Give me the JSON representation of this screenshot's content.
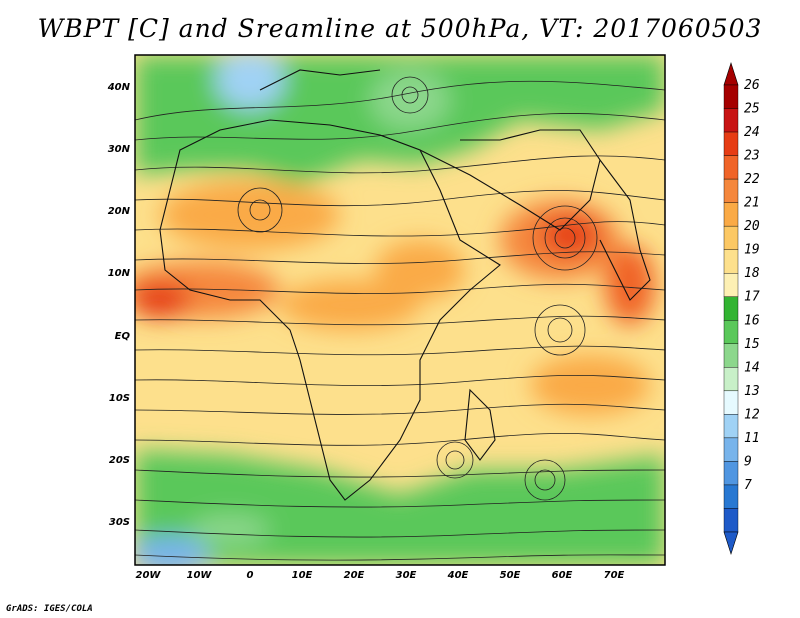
{
  "title": "WBPT [C] and Sreamline at 500hPa, VT: 2017060503",
  "footer": "GrADS: IGES/COLA",
  "map": {
    "variable": "Wet-bulb potential temperature (WBPT) with streamlines",
    "level": "500hPa",
    "valid_time": "2017060503",
    "lon_range": [
      -22,
      80
    ],
    "lat_range": [
      -37,
      45
    ],
    "lon_ticks": [
      "20W",
      "10W",
      "0",
      "10E",
      "20E",
      "30E",
      "40E",
      "50E",
      "60E",
      "70E"
    ],
    "lat_ticks": [
      "40N",
      "30N",
      "20N",
      "10N",
      "EQ",
      "10S",
      "20S",
      "30S"
    ]
  },
  "colorbar": {
    "labels": [
      "26",
      "25",
      "24",
      "23",
      "22",
      "21",
      "20",
      "19",
      "18",
      "17",
      "16",
      "15",
      "14",
      "13",
      "12",
      "11",
      "9",
      "7"
    ],
    "colors": [
      "#a50000",
      "#c81414",
      "#e63c14",
      "#f06428",
      "#f5873c",
      "#faaa46",
      "#fcc864",
      "#fde08c",
      "#fdf0b4",
      "#32b432",
      "#5ac85a",
      "#8cd78c",
      "#c8f0c8",
      "#e6faff",
      "#a0d2f5",
      "#78b4eb",
      "#5096e1",
      "#2878d2",
      "#1e5ac8"
    ],
    "top_arrow_color": "#a50000",
    "bottom_arrow_color": "#1e5ac8"
  }
}
